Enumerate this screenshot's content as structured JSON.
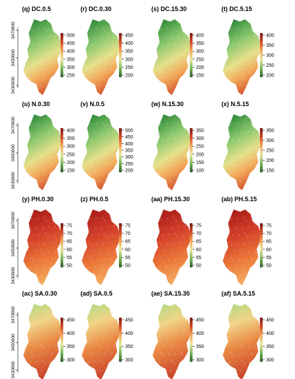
{
  "y_axis_ticks": [
    "3470000",
    "3450000",
    "3430000"
  ],
  "rows": [
    {
      "palette": "green",
      "panels": [
        {
          "title": "(q) DC.0.5",
          "legend_ticks": [
            "500",
            "450",
            "400",
            "350",
            "300",
            "250"
          ]
        },
        {
          "title": "(r) DC.0.30",
          "legend_ticks": [
            "450",
            "400",
            "350",
            "300",
            "250",
            "200"
          ]
        },
        {
          "title": "(s) DC.15.30",
          "legend_ticks": [
            "400",
            "350",
            "300",
            "250",
            "200",
            "150"
          ]
        },
        {
          "title": "(t) DC.5.15",
          "legend_ticks": [
            "400",
            "350",
            "300",
            "250",
            "200"
          ]
        }
      ]
    },
    {
      "palette": "green",
      "panels": [
        {
          "title": "(u) N.0.30",
          "legend_ticks": [
            "400",
            "350",
            "300",
            "250",
            "200",
            "150"
          ]
        },
        {
          "title": "(v) N.0.5",
          "legend_ticks": [
            "500",
            "450",
            "400",
            "350",
            "300",
            "250",
            "200"
          ]
        },
        {
          "title": "(w) N.15.30",
          "legend_ticks": [
            "350",
            "300",
            "250",
            "200",
            "150",
            "100"
          ]
        },
        {
          "title": "(x) N.5.15",
          "legend_ticks": [
            "350",
            "300",
            "250",
            "200",
            "150"
          ]
        }
      ]
    },
    {
      "palette": "red",
      "panels": [
        {
          "title": "(y) PH.0.30",
          "legend_ticks": [
            "75",
            "70",
            "65",
            "60",
            "55",
            "50"
          ]
        },
        {
          "title": "(z) PH.0.5",
          "legend_ticks": [
            "75",
            "70",
            "65",
            "60",
            "55",
            "50"
          ]
        },
        {
          "title": "(aa) PH.15.30",
          "legend_ticks": [
            "75",
            "70",
            "65",
            "60",
            "55",
            "50"
          ]
        },
        {
          "title": "(ab) PH.5.15",
          "legend_ticks": [
            "75",
            "70",
            "65",
            "60",
            "55",
            "50"
          ]
        }
      ]
    },
    {
      "palette": "mixed",
      "panels": [
        {
          "title": "(ac) SA.0.30",
          "legend_ticks": [
            "450",
            "400",
            "350",
            "300"
          ]
        },
        {
          "title": "(ad) SA.0.5",
          "legend_ticks": [
            "450",
            "400",
            "350",
            "300"
          ]
        },
        {
          "title": "(ae) SA.15.30",
          "legend_ticks": [
            "450",
            "400",
            "350",
            "300"
          ]
        },
        {
          "title": "(af) SA.5.15",
          "legend_ticks": [
            "450",
            "400",
            "350",
            "300"
          ]
        }
      ]
    }
  ],
  "colors": {
    "ramp": [
      "#2e5e2e",
      "#5aa050",
      "#a8d27a",
      "#f2e89a",
      "#f5b86a",
      "#ea7a3c",
      "#cf3a26",
      "#a01e1a",
      "#7a1a14"
    ],
    "green": [
      "#2f8a3a",
      "#7ec46a",
      "#d9ea8e",
      "#f7d27e"
    ],
    "red": [
      "#b31f1a",
      "#d8442a",
      "#ee7a3a",
      "#f5a860"
    ],
    "mixed": [
      "#c8e08a",
      "#f4c070",
      "#e8733a",
      "#c43a22"
    ]
  }
}
